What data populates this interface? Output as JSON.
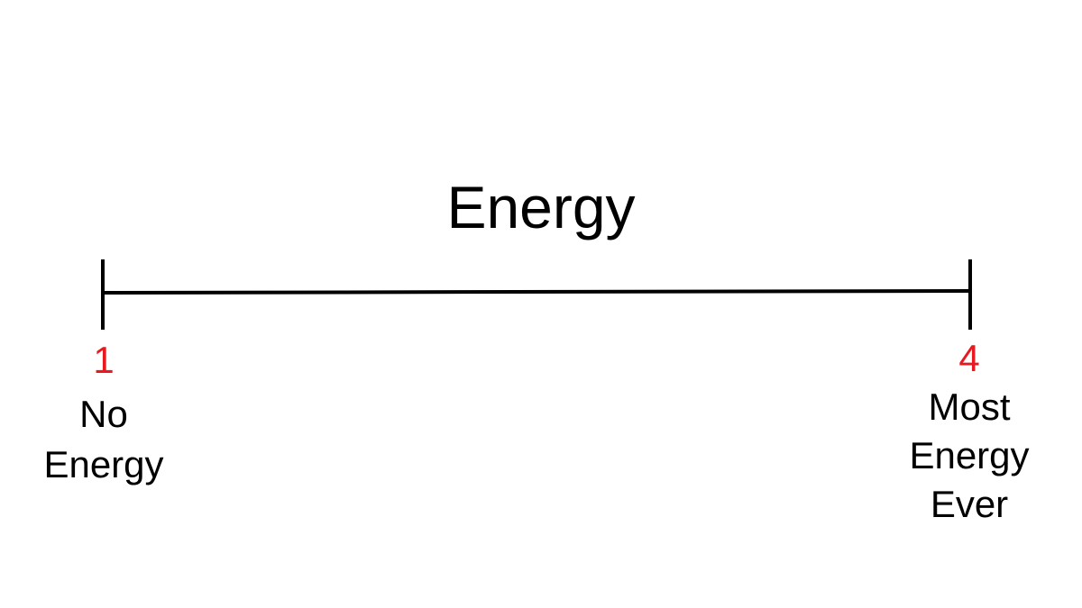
{
  "title": "Energy",
  "scale": {
    "min": {
      "value": "1",
      "label": "No\nEnergy"
    },
    "max": {
      "value": "4",
      "label": "Most\nEnergy\nEver"
    }
  },
  "colors": {
    "line": "#000000",
    "value_text": "#e8191f",
    "label_text": "#000000"
  }
}
